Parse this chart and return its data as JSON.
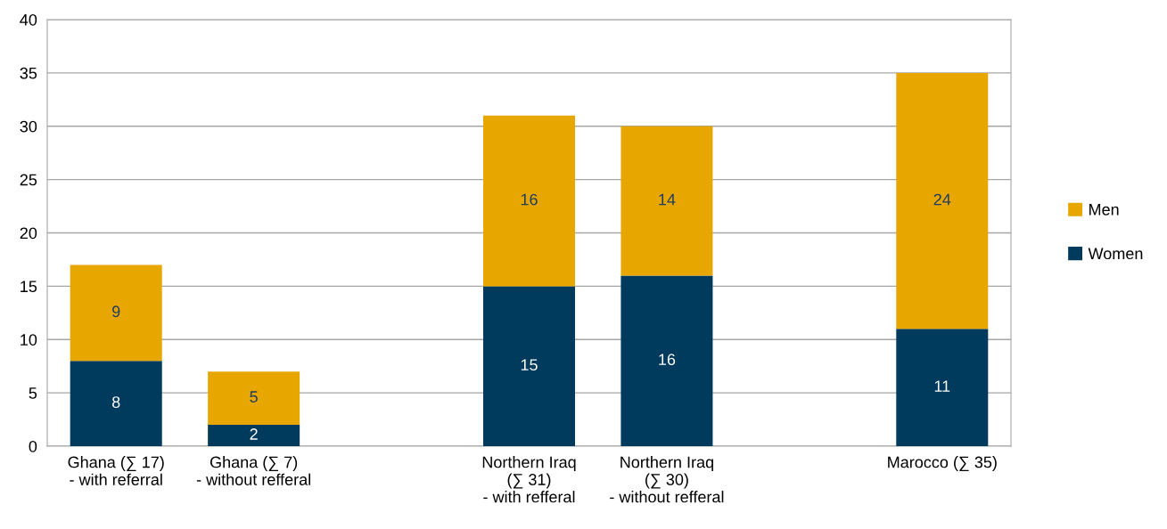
{
  "chart_data": {
    "type": "bar",
    "stacked": true,
    "categories": [
      "Ghana (∑ 17)\n- with referral",
      "Ghana (∑ 7)\n- without refferal",
      null,
      "Northern Iraq\n(∑ 31)\n- with refferal",
      "Northern Iraq\n(∑ 30)\n- without refferal",
      null,
      "Marocco (∑ 35)"
    ],
    "series": [
      {
        "name": "Women",
        "color": "#003a5d",
        "values": [
          8,
          2,
          null,
          15,
          16,
          null,
          11
        ]
      },
      {
        "name": "Men",
        "color": "#e8a600",
        "values": [
          9,
          5,
          null,
          16,
          14,
          null,
          24
        ]
      }
    ],
    "ylim": [
      0,
      40
    ],
    "yticks": [
      0,
      5,
      10,
      15,
      20,
      25,
      30,
      35,
      40
    ],
    "grid": "y",
    "legend": "right",
    "data_labels": true
  }
}
